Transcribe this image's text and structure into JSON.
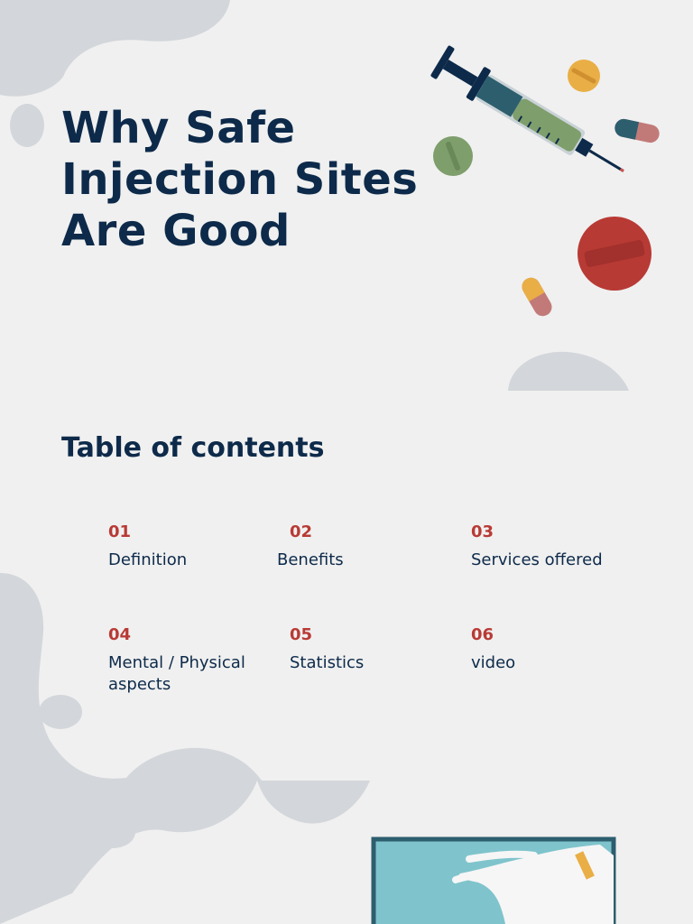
{
  "title": "Why Safe Injection Sites Are Good",
  "toc": {
    "heading": "Table of contents",
    "items": [
      {
        "num": "01",
        "label": "Definition"
      },
      {
        "num": "02",
        "label": "Benefits"
      },
      {
        "num": "03",
        "label": "Services offered"
      },
      {
        "num": "04",
        "label": "Mental / Physical aspects"
      },
      {
        "num": "05",
        "label": "Statistics"
      },
      {
        "num": "06",
        "label": "video"
      }
    ]
  },
  "colors": {
    "background": "#f0f0f0",
    "heading": "#0d2a4a",
    "accent_number": "#b83a35",
    "blob": "#d3d6da"
  },
  "illustrations": [
    "syringe-icon",
    "pill-icon",
    "capsule-icon",
    "gloved-hand-icon"
  ]
}
